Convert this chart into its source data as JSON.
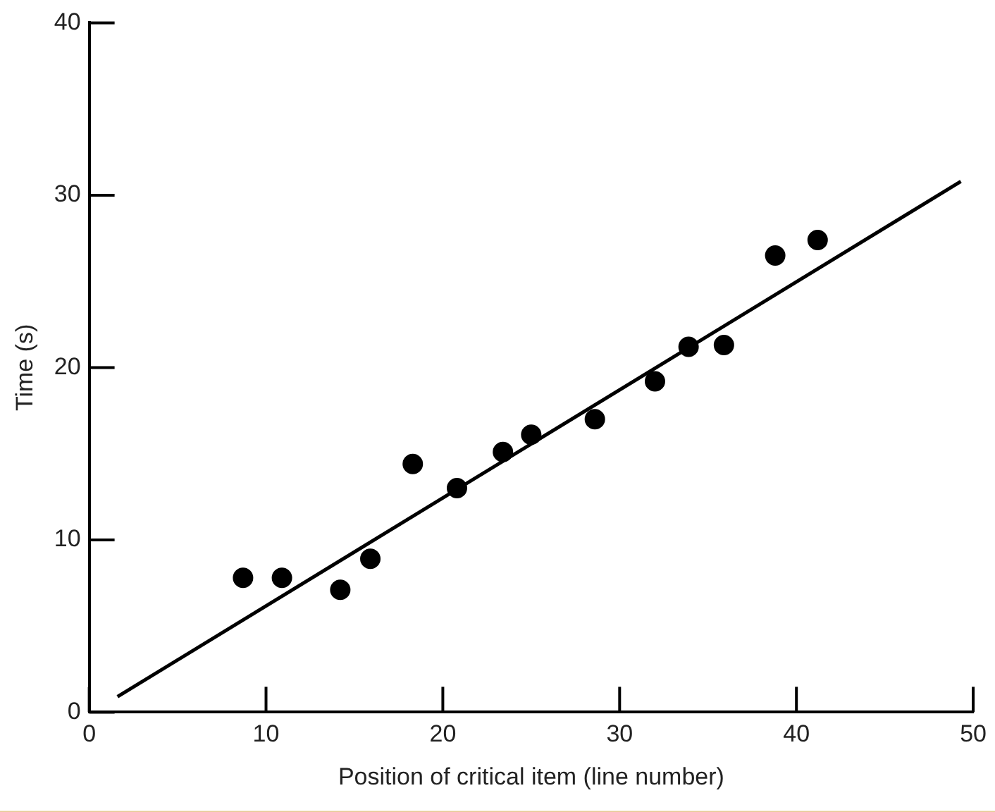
{
  "chart_data": {
    "type": "scatter",
    "xlabel": "Position of critical item (line number)",
    "ylabel": "Time (s)",
    "xlim": [
      0,
      50
    ],
    "xticks": [
      0,
      10,
      20,
      30,
      40,
      50
    ],
    "ylim": [
      0,
      40
    ],
    "yticks": [
      0,
      10,
      20,
      30,
      40
    ],
    "grid": false,
    "legend": false,
    "marker": "circle",
    "series": [
      {
        "type": "scatter",
        "color": "#000000",
        "x": [
          8.7,
          10.9,
          14.2,
          15.9,
          18.3,
          20.8,
          23.4,
          25.0,
          28.6,
          32.0,
          33.9,
          35.9,
          38.8,
          41.2
        ],
        "values": [
          7.8,
          7.8,
          7.1,
          8.9,
          14.4,
          13.0,
          15.1,
          16.1,
          17.0,
          19.2,
          21.2,
          21.3,
          26.5,
          27.4
        ]
      },
      {
        "type": "line",
        "color": "#000000",
        "x": [
          1.6,
          49.3
        ],
        "values": [
          0.9,
          30.8
        ],
        "marker": "none",
        "line_style": "solid"
      }
    ]
  }
}
